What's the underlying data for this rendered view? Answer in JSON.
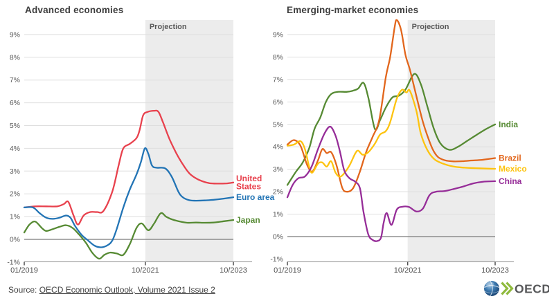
{
  "source": {
    "prefix": "Source: ",
    "link_text": "OECD Economic Outlook, Volume 2021 Issue 2"
  },
  "logo": {
    "text": "OECD",
    "globe_color": "#2b6ba6",
    "chevron_color": "#8fba3d",
    "text_color": "#57585a"
  },
  "chart_data": [
    {
      "type": "line",
      "title": "Advanced economies",
      "projection_label": "Projection",
      "projection_span_t": [
        2.75,
        4.75
      ],
      "grid": true,
      "legend_position": "right-end-labels",
      "x_axis": {
        "ticks": [
          {
            "label": "01/2019",
            "t": 0
          },
          {
            "label": "10/2021",
            "t": 2.75
          },
          {
            "label": "10/2023",
            "t": 4.75
          }
        ]
      },
      "y_axis": {
        "min": -1,
        "max": 9,
        "unit": "%",
        "tick_labels": [
          "9%",
          "8%",
          "7%",
          "6%",
          "5%",
          "4%",
          "3%",
          "2%",
          "1%",
          "0%",
          "-1%"
        ],
        "tick_values": [
          9,
          8,
          7,
          6,
          5,
          4,
          3,
          2,
          1,
          0,
          -1
        ]
      },
      "series": [
        {
          "name": "United States",
          "label_lines": [
            "United",
            "States"
          ],
          "color": "#e8414d",
          "points": [
            [
              0,
              1.4
            ],
            [
              0.25,
              1.45
            ],
            [
              0.5,
              1.45
            ],
            [
              0.75,
              1.45
            ],
            [
              0.9,
              1.55
            ],
            [
              1.0,
              1.65
            ],
            [
              1.12,
              1.05
            ],
            [
              1.22,
              0.65
            ],
            [
              1.35,
              1.05
            ],
            [
              1.5,
              1.2
            ],
            [
              1.65,
              1.2
            ],
            [
              1.8,
              1.25
            ],
            [
              2.0,
              2.1
            ],
            [
              2.15,
              3.3
            ],
            [
              2.25,
              4.0
            ],
            [
              2.4,
              4.2
            ],
            [
              2.55,
              4.45
            ],
            [
              2.62,
              4.8
            ],
            [
              2.7,
              5.45
            ],
            [
              2.8,
              5.6
            ],
            [
              2.95,
              5.65
            ],
            [
              3.05,
              5.6
            ],
            [
              3.15,
              5.15
            ],
            [
              3.3,
              4.4
            ],
            [
              3.45,
              3.8
            ],
            [
              3.6,
              3.3
            ],
            [
              3.75,
              2.9
            ],
            [
              3.9,
              2.68
            ],
            [
              4.05,
              2.55
            ],
            [
              4.2,
              2.47
            ],
            [
              4.4,
              2.45
            ],
            [
              4.6,
              2.46
            ],
            [
              4.75,
              2.5
            ]
          ]
        },
        {
          "name": "Euro area",
          "label_lines": [
            "Euro area"
          ],
          "color": "#2274b5",
          "points": [
            [
              0,
              1.4
            ],
            [
              0.2,
              1.4
            ],
            [
              0.35,
              1.15
            ],
            [
              0.5,
              0.95
            ],
            [
              0.65,
              0.9
            ],
            [
              0.8,
              0.95
            ],
            [
              0.95,
              1.05
            ],
            [
              1.05,
              0.95
            ],
            [
              1.15,
              0.6
            ],
            [
              1.3,
              0.2
            ],
            [
              1.45,
              -0.05
            ],
            [
              1.6,
              -0.28
            ],
            [
              1.75,
              -0.35
            ],
            [
              1.9,
              -0.25
            ],
            [
              2.0,
              -0.05
            ],
            [
              2.1,
              0.45
            ],
            [
              2.25,
              1.4
            ],
            [
              2.4,
              2.2
            ],
            [
              2.55,
              2.85
            ],
            [
              2.65,
              3.4
            ],
            [
              2.74,
              4.0
            ],
            [
              2.82,
              3.75
            ],
            [
              2.9,
              3.25
            ],
            [
              3.0,
              3.15
            ],
            [
              3.2,
              3.12
            ],
            [
              3.35,
              2.75
            ],
            [
              3.5,
              2.1
            ],
            [
              3.6,
              1.85
            ],
            [
              3.75,
              1.72
            ],
            [
              3.9,
              1.7
            ],
            [
              4.1,
              1.71
            ],
            [
              4.3,
              1.74
            ],
            [
              4.5,
              1.78
            ],
            [
              4.75,
              1.85
            ]
          ]
        },
        {
          "name": "Japan",
          "label_lines": [
            "Japan"
          ],
          "color": "#568a33",
          "points": [
            [
              0,
              0.3
            ],
            [
              0.12,
              0.65
            ],
            [
              0.25,
              0.78
            ],
            [
              0.4,
              0.5
            ],
            [
              0.5,
              0.37
            ],
            [
              0.65,
              0.45
            ],
            [
              0.8,
              0.55
            ],
            [
              0.95,
              0.62
            ],
            [
              1.1,
              0.5
            ],
            [
              1.25,
              0.2
            ],
            [
              1.4,
              -0.15
            ],
            [
              1.55,
              -0.6
            ],
            [
              1.7,
              -0.85
            ],
            [
              1.82,
              -0.68
            ],
            [
              1.95,
              -0.58
            ],
            [
              2.1,
              -0.62
            ],
            [
              2.25,
              -0.68
            ],
            [
              2.4,
              -0.2
            ],
            [
              2.55,
              0.5
            ],
            [
              2.67,
              0.7
            ],
            [
              2.82,
              0.4
            ],
            [
              2.95,
              0.7
            ],
            [
              3.1,
              1.15
            ],
            [
              3.22,
              1.0
            ],
            [
              3.35,
              0.88
            ],
            [
              3.5,
              0.8
            ],
            [
              3.7,
              0.73
            ],
            [
              3.9,
              0.74
            ],
            [
              4.1,
              0.73
            ],
            [
              4.3,
              0.74
            ],
            [
              4.55,
              0.8
            ],
            [
              4.75,
              0.85
            ]
          ]
        }
      ]
    },
    {
      "type": "line",
      "title": "Emerging-market economies",
      "projection_label": "Projection",
      "projection_span_t": [
        2.75,
        4.75
      ],
      "grid": true,
      "legend_position": "right-end-labels",
      "x_axis": {
        "ticks": [
          {
            "label": "01/2019",
            "t": 0
          },
          {
            "label": "10/2021",
            "t": 2.75
          },
          {
            "label": "10/2023",
            "t": 4.75
          }
        ]
      },
      "y_axis": {
        "min": -1,
        "max": 9,
        "unit": "%",
        "tick_labels": [
          "9%",
          "8%",
          "7%",
          "6%",
          "5%",
          "4%",
          "3%",
          "2%",
          "1%",
          "0%",
          "-1%"
        ],
        "tick_values": [
          9,
          8,
          7,
          6,
          5,
          4,
          3,
          2,
          1,
          0,
          -1
        ]
      },
      "series": [
        {
          "name": "India",
          "label_lines": [
            "India"
          ],
          "color": "#568a33",
          "points": [
            [
              0,
              2.3
            ],
            [
              0.2,
              2.9
            ],
            [
              0.35,
              3.3
            ],
            [
              0.5,
              3.95
            ],
            [
              0.62,
              4.8
            ],
            [
              0.75,
              5.3
            ],
            [
              0.88,
              6.0
            ],
            [
              1.0,
              6.35
            ],
            [
              1.15,
              6.45
            ],
            [
              1.35,
              6.45
            ],
            [
              1.5,
              6.5
            ],
            [
              1.62,
              6.6
            ],
            [
              1.74,
              6.85
            ],
            [
              1.85,
              6.2
            ],
            [
              2.0,
              4.8
            ],
            [
              2.12,
              5.2
            ],
            [
              2.25,
              5.75
            ],
            [
              2.4,
              6.2
            ],
            [
              2.55,
              6.28
            ],
            [
              2.7,
              6.55
            ],
            [
              2.9,
              7.25
            ],
            [
              3.05,
              6.8
            ],
            [
              3.2,
              5.8
            ],
            [
              3.35,
              4.8
            ],
            [
              3.5,
              4.15
            ],
            [
              3.7,
              3.87
            ],
            [
              3.9,
              4.0
            ],
            [
              4.1,
              4.25
            ],
            [
              4.3,
              4.5
            ],
            [
              4.55,
              4.8
            ],
            [
              4.75,
              5.0
            ]
          ]
        },
        {
          "name": "Brazil",
          "label_lines": [
            "Brazil"
          ],
          "color": "#e2661c",
          "points": [
            [
              0,
              4.1
            ],
            [
              0.15,
              4.3
            ],
            [
              0.3,
              4.05
            ],
            [
              0.45,
              3.2
            ],
            [
              0.57,
              2.9
            ],
            [
              0.7,
              3.4
            ],
            [
              0.8,
              3.9
            ],
            [
              0.9,
              3.72
            ],
            [
              1.0,
              3.76
            ],
            [
              1.12,
              3.2
            ],
            [
              1.25,
              2.2
            ],
            [
              1.35,
              2.0
            ],
            [
              1.5,
              2.15
            ],
            [
              1.65,
              2.85
            ],
            [
              1.8,
              3.76
            ],
            [
              1.95,
              4.45
            ],
            [
              2.1,
              5.2
            ],
            [
              2.25,
              7.1
            ],
            [
              2.35,
              8.0
            ],
            [
              2.45,
              9.3
            ],
            [
              2.5,
              9.65
            ],
            [
              2.6,
              9.2
            ],
            [
              2.7,
              8.1
            ],
            [
              2.8,
              7.45
            ],
            [
              2.9,
              6.65
            ],
            [
              3.0,
              5.85
            ],
            [
              3.1,
              5.1
            ],
            [
              3.2,
              4.5
            ],
            [
              3.32,
              3.9
            ],
            [
              3.44,
              3.55
            ],
            [
              3.6,
              3.4
            ],
            [
              3.8,
              3.35
            ],
            [
              4.0,
              3.36
            ],
            [
              4.2,
              3.39
            ],
            [
              4.45,
              3.42
            ],
            [
              4.75,
              3.5
            ]
          ]
        },
        {
          "name": "Mexico",
          "label_lines": [
            "Mexico"
          ],
          "color": "#fdc30f",
          "points": [
            [
              0,
              4.05
            ],
            [
              0.15,
              4.1
            ],
            [
              0.3,
              4.25
            ],
            [
              0.4,
              3.9
            ],
            [
              0.5,
              3.1
            ],
            [
              0.57,
              2.85
            ],
            [
              0.7,
              3.25
            ],
            [
              0.8,
              3.3
            ],
            [
              0.9,
              3.12
            ],
            [
              1.0,
              3.36
            ],
            [
              1.1,
              2.85
            ],
            [
              1.22,
              2.68
            ],
            [
              1.4,
              3.1
            ],
            [
              1.55,
              3.7
            ],
            [
              1.62,
              3.83
            ],
            [
              1.72,
              3.65
            ],
            [
              1.85,
              3.76
            ],
            [
              2.0,
              4.14
            ],
            [
              2.12,
              4.55
            ],
            [
              2.25,
              4.7
            ],
            [
              2.35,
              5.1
            ],
            [
              2.5,
              6.14
            ],
            [
              2.62,
              6.54
            ],
            [
              2.72,
              6.42
            ],
            [
              2.8,
              6.5
            ],
            [
              2.95,
              5.6
            ],
            [
              3.05,
              4.6
            ],
            [
              3.2,
              3.86
            ],
            [
              3.36,
              3.45
            ],
            [
              3.56,
              3.25
            ],
            [
              3.8,
              3.12
            ],
            [
              4.05,
              3.07
            ],
            [
              4.3,
              3.05
            ],
            [
              4.55,
              3.03
            ],
            [
              4.75,
              3.02
            ]
          ]
        },
        {
          "name": "China",
          "label_lines": [
            "China"
          ],
          "color": "#962d98",
          "points": [
            [
              0,
              1.75
            ],
            [
              0.12,
              2.3
            ],
            [
              0.25,
              2.6
            ],
            [
              0.4,
              2.68
            ],
            [
              0.55,
              3.1
            ],
            [
              0.7,
              3.9
            ],
            [
              0.85,
              4.6
            ],
            [
              0.98,
              4.9
            ],
            [
              1.1,
              4.5
            ],
            [
              1.2,
              3.8
            ],
            [
              1.3,
              2.95
            ],
            [
              1.42,
              2.6
            ],
            [
              1.55,
              2.45
            ],
            [
              1.66,
              2.15
            ],
            [
              1.74,
              1.1
            ],
            [
              1.85,
              0.1
            ],
            [
              1.95,
              -0.15
            ],
            [
              2.05,
              -0.2
            ],
            [
              2.14,
              -0.05
            ],
            [
              2.2,
              0.6
            ],
            [
              2.27,
              1.05
            ],
            [
              2.38,
              0.52
            ],
            [
              2.5,
              1.2
            ],
            [
              2.63,
              1.33
            ],
            [
              2.78,
              1.32
            ],
            [
              2.95,
              1.12
            ],
            [
              3.1,
              1.25
            ],
            [
              3.25,
              1.85
            ],
            [
              3.4,
              2.0
            ],
            [
              3.6,
              2.03
            ],
            [
              3.8,
              2.12
            ],
            [
              4.0,
              2.22
            ],
            [
              4.25,
              2.37
            ],
            [
              4.5,
              2.45
            ],
            [
              4.75,
              2.47
            ]
          ]
        }
      ]
    }
  ]
}
